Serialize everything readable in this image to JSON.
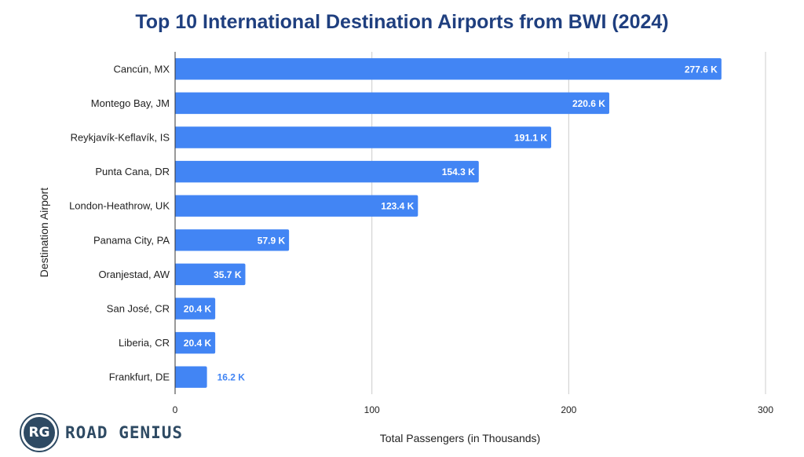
{
  "chart_data": {
    "type": "bar",
    "orientation": "horizontal",
    "title": "Top 10 International Destination Airports from BWI (2024)",
    "xlabel": "Total Passengers (in Thousands)",
    "ylabel": "Destination Airport",
    "categories": [
      "Cancún, MX",
      "Montego Bay, JM",
      "Reykjavík-Keflavík, IS",
      "Punta Cana, DR",
      "London-Heathrow, UK",
      "Panama City, PA",
      "Oranjestad, AW",
      "San José, CR",
      "Liberia, CR",
      "Frankfurt, DE"
    ],
    "values": [
      277.6,
      220.6,
      191.1,
      154.3,
      123.4,
      57.9,
      35.7,
      20.4,
      20.4,
      16.2
    ],
    "data_labels": [
      "277.6 K",
      "220.6 K",
      "191.1 K",
      "154.3 K",
      "123.4 K",
      "57.9 K",
      "35.7 K",
      "20.4 K",
      "20.4 K",
      "16.2 K"
    ],
    "xlim": [
      0,
      300
    ],
    "xticks": [
      0,
      100,
      200,
      300
    ],
    "grid": true,
    "legend": "none",
    "colors": {
      "bar": "#4285f4",
      "label_inside": "#ffffff",
      "label_outside": "#4285f4",
      "title": "#1f3f7f",
      "grid": "#cccccc"
    }
  },
  "brand": {
    "logo_text": "RG",
    "name": "ROAD GENIUS"
  }
}
